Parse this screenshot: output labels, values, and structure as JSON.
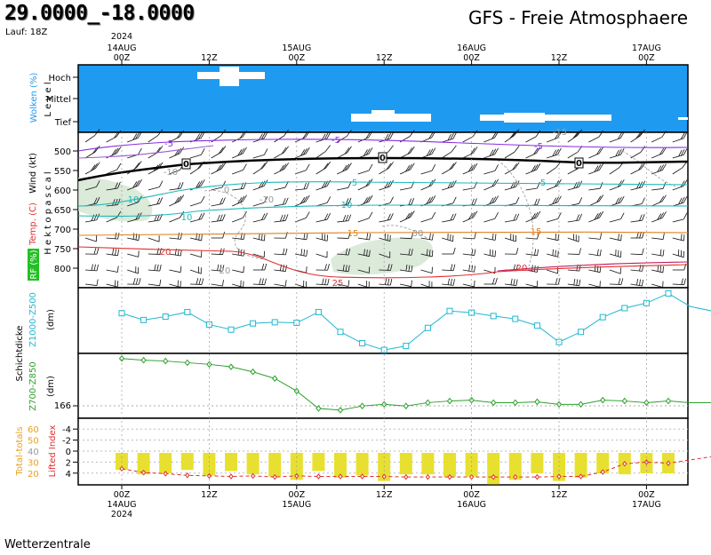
{
  "header": {
    "coordinates": "29.0000_-18.0000",
    "run": "Lauf: 18Z",
    "title": "GFS - Freie Atmosphaere",
    "footer": "Wetterzentrale"
  },
  "time_axis": {
    "ticks": [
      {
        "label": "00Z",
        "date": "14AUG",
        "year": "2024"
      },
      {
        "label": "12Z"
      },
      {
        "label": "00Z",
        "date": "15AUG"
      },
      {
        "label": "12Z"
      },
      {
        "label": "00Z",
        "date": "16AUG"
      },
      {
        "label": "12Z"
      },
      {
        "label": "00Z",
        "date": "17AUG"
      }
    ]
  },
  "panels": {
    "clouds": {
      "label": "Wolken (%)",
      "level_label": "L e v e l",
      "levels": [
        "Hoch",
        "Mittel",
        "Tief"
      ],
      "color": "#1e9bf0"
    },
    "wind": {
      "wind_label": "Wind (kt)",
      "pressure_label": "H e k t o p a s c a l",
      "temp_label": "Temp. (C)",
      "rh_label": "RF (%)",
      "pressure_ticks": [
        "500",
        "550",
        "600",
        "650",
        "700",
        "750",
        "800"
      ],
      "temp_contour_labels": [
        "-5",
        "-5",
        "-5",
        "-10",
        "0",
        "5",
        "5",
        "10",
        "-10",
        "10",
        "10",
        "15",
        "15",
        "20",
        "-15",
        "20",
        "25",
        "20",
        "30"
      ]
    },
    "thickness": {
      "label": "Schichtdicke",
      "upper_series": "Z1000-Z500",
      "upper_unit": "(dm)",
      "lower_series": "Z700-Z850",
      "lower_unit": "(dm)",
      "lower_tick": "166"
    },
    "indices": {
      "tt_label": "Total-totals",
      "li_label": "Lifted Index",
      "tt_ticks": [
        "60",
        "50",
        "40",
        "30",
        "20"
      ],
      "li_ticks": [
        "-4",
        "-2",
        "0",
        "2",
        "4"
      ]
    }
  },
  "chart_data": [
    {
      "type": "line",
      "title": "Z1000-Z500",
      "xlabel": "",
      "ylabel": "(dm)",
      "x": [
        0,
        3,
        6,
        9,
        12,
        15,
        18,
        21,
        24,
        27,
        30,
        33,
        36,
        39,
        42,
        45,
        48,
        51,
        54,
        57,
        60,
        63,
        66,
        69,
        72,
        75,
        78,
        81,
        84
      ],
      "values": [
        576.8,
        575.6,
        576.2,
        577.0,
        574.8,
        573.9,
        575.0,
        575.2,
        575.1,
        577.0,
        573.5,
        571.5,
        570.3,
        571.0,
        574.2,
        577.2,
        576.9,
        576.3,
        575.8,
        574.6,
        571.7,
        573.5,
        576.1,
        577.7,
        578.6,
        580.3,
        578.0,
        577.2,
        575.4
      ],
      "color": "#20b8d0"
    },
    {
      "type": "line",
      "title": "Z700-Z850",
      "xlabel": "",
      "ylabel": "(dm)",
      "x": [
        0,
        3,
        6,
        9,
        12,
        15,
        18,
        21,
        24,
        27,
        30,
        33,
        36,
        39,
        42,
        45,
        48,
        51,
        54,
        57,
        60,
        63,
        66,
        69,
        72,
        75,
        78,
        81,
        84
      ],
      "values": [
        171.6,
        171.4,
        171.3,
        171.1,
        170.9,
        170.6,
        170.0,
        169.2,
        167.7,
        165.6,
        165.4,
        165.9,
        166.1,
        165.9,
        166.3,
        166.5,
        166.6,
        166.3,
        166.3,
        166.4,
        166.1,
        166.1,
        166.6,
        166.5,
        166.3,
        166.5,
        166.3,
        166.3,
        166.2
      ],
      "color": "#2ca02c"
    },
    {
      "type": "bar",
      "title": "Total-totals",
      "x": [
        0,
        3,
        6,
        9,
        12,
        15,
        18,
        21,
        24,
        27,
        30,
        33,
        36,
        39,
        42,
        45,
        48,
        51,
        54,
        57,
        60,
        63,
        66,
        69,
        72,
        75,
        78,
        81,
        84
      ],
      "values": [
        39,
        35,
        36,
        39,
        34,
        38,
        35,
        33,
        30,
        38,
        32,
        34,
        29,
        35,
        35,
        33,
        33,
        26,
        30,
        36,
        29,
        32,
        36,
        35,
        36,
        36,
        37,
        36,
        36
      ],
      "color": "#e8e030"
    },
    {
      "type": "line",
      "title": "Lifted Index",
      "x": [
        0,
        3,
        6,
        9,
        12,
        15,
        18,
        21,
        24,
        27,
        30,
        33,
        36,
        39,
        42,
        45,
        48,
        51,
        54,
        57,
        60,
        63,
        66,
        69,
        72,
        75,
        78,
        81,
        84
      ],
      "values": [
        3.2,
        3.9,
        4.1,
        4.4,
        4.5,
        4.6,
        4.5,
        4.7,
        4.5,
        4.6,
        4.6,
        4.6,
        4.6,
        4.7,
        4.7,
        4.7,
        4.7,
        4.7,
        4.7,
        4.7,
        4.6,
        4.6,
        3.8,
        2.3,
        2.0,
        2.2,
        1.6,
        1.0,
        1.7
      ],
      "color": "#e03030"
    }
  ]
}
